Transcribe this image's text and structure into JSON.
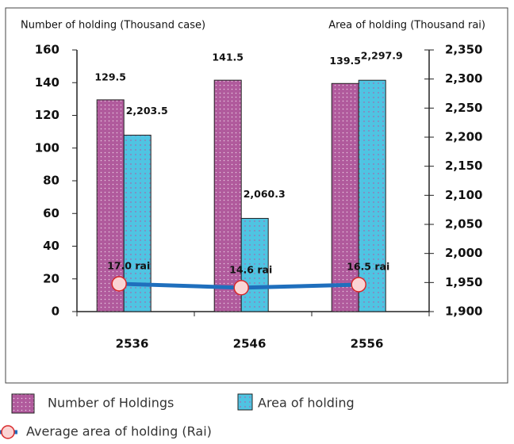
{
  "chart_data": {
    "type": "bar",
    "y_label": "Number of holding  (Thousand case)",
    "y2_label": "Area of holding (Thousand rai)",
    "categories": [
      "2536",
      "2546",
      "2556"
    ],
    "series": [
      {
        "name": "Number of Holdings",
        "color": "#b05a9c",
        "values": [
          129.5,
          141.5,
          139.5
        ]
      },
      {
        "name": "Area of holding",
        "color": "#4fc4e2",
        "axis": "y2",
        "values": [
          2203.5,
          2060.3,
          2297.9
        ],
        "value_labels": [
          "2,203.5",
          "2,060.3",
          "2,297.9"
        ]
      },
      {
        "name": "Average area of  holding (Rai)",
        "type": "line",
        "color": "#1f6fbd",
        "values": [
          17.0,
          14.6,
          16.5
        ],
        "value_labels": [
          "17.0 rai",
          "14.6 rai",
          "16.5 rai"
        ]
      }
    ],
    "ylim": [
      0,
      160
    ],
    "yticks": [
      0,
      20,
      40,
      60,
      80,
      100,
      120,
      140,
      160
    ],
    "y2lim": [
      1900,
      2350
    ],
    "y2ticks": [
      {
        "value": 1900,
        "label": "1,900"
      },
      {
        "value": 1950,
        "label": "1,950"
      },
      {
        "value": 2000,
        "label": "2,000"
      },
      {
        "value": 2050,
        "label": "2,050"
      },
      {
        "value": 2100,
        "label": "2,100"
      },
      {
        "value": 2150,
        "label": "2,150"
      },
      {
        "value": 2200,
        "label": "2,200"
      },
      {
        "value": 2250,
        "label": "2,250"
      },
      {
        "value": 2300,
        "label": "2,300"
      },
      {
        "value": 2350,
        "label": "2,350"
      }
    ]
  }
}
